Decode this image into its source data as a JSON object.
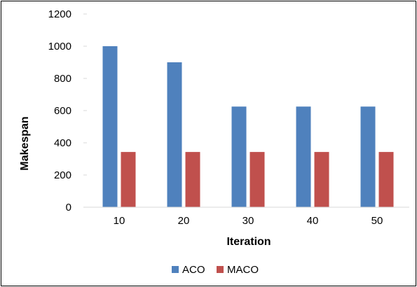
{
  "chart_data": {
    "type": "bar",
    "title": "",
    "xlabel": "Iteration",
    "ylabel": "Makespan",
    "categories": [
      "10",
      "20",
      "30",
      "40",
      "50"
    ],
    "series": [
      {
        "name": "ACO",
        "values": [
          1000,
          900,
          625,
          625,
          625
        ],
        "color": "#4f81bd"
      },
      {
        "name": "MACO",
        "values": [
          343,
          343,
          343,
          343,
          343
        ],
        "color": "#c0504d"
      }
    ],
    "ylim": [
      0,
      1200
    ],
    "yticks": [
      "0",
      "200",
      "400",
      "600",
      "800",
      "1000",
      "1200"
    ],
    "grid": false,
    "legend": "bottom"
  }
}
